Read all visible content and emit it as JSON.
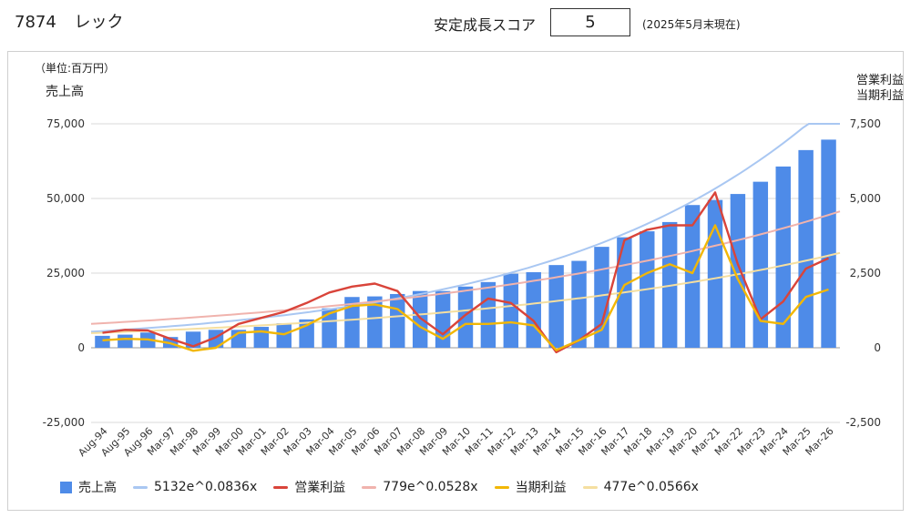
{
  "header": {
    "code": "7874",
    "name": "レック",
    "score_label": "安定成長スコア",
    "score_value": "5",
    "score_note": "(2025年5月末現在)"
  },
  "chart_data": {
    "type": "bar",
    "unit_label": "（単位:百万円）",
    "ylabel_left": "売上高",
    "ylabel_right": [
      "営業利益",
      "当期利益"
    ],
    "categories": [
      "Aug-94",
      "Aug-95",
      "Aug-96",
      "Mar-97",
      "Mar-98",
      "Mar-99",
      "Mar-00",
      "Mar-01",
      "Mar-02",
      "Mar-03",
      "Mar-04",
      "Mar-05",
      "Mar-06",
      "Mar-07",
      "Mar-08",
      "Mar-09",
      "Mar-10",
      "Mar-11",
      "Mar-12",
      "Mar-13",
      "Mar-14",
      "Mar-15",
      "Mar-16",
      "Mar-17",
      "Mar-18",
      "Mar-19",
      "Mar-20",
      "Mar-21",
      "Mar-22",
      "Mar-23",
      "Mar-24",
      "Mar-25",
      "Mar-26"
    ],
    "ylim_left": [
      -25000,
      75000
    ],
    "ylim_right": [
      -2500,
      7500
    ],
    "yticks_left": [
      "75,000",
      "50,000",
      "25,000",
      "0",
      "-25,000"
    ],
    "yticks_right": [
      "7,500",
      "5,000",
      "2,500",
      "0",
      "-2,500"
    ],
    "grid": true,
    "legend_position": "bottom",
    "series": [
      {
        "name": "売上高",
        "kind": "bar",
        "axis": "left",
        "color": "#4e8be8",
        "values": [
          4000,
          4400,
          5100,
          3600,
          5400,
          6000,
          6000,
          7000,
          8200,
          9500,
          13200,
          17000,
          17200,
          18000,
          19000,
          19000,
          20500,
          22000,
          24800,
          25300,
          27700,
          29100,
          33800,
          37000,
          39000,
          42100,
          47800,
          49500,
          51500,
          55600,
          60700,
          66200,
          69700
        ]
      },
      {
        "name": "5132e^0.0836x",
        "kind": "trend",
        "axis": "left",
        "color": "#a9c7f2",
        "a": 5132,
        "b": 0.0836
      },
      {
        "name": "営業利益",
        "kind": "line",
        "axis": "right",
        "color": "#d9443a",
        "values": [
          500,
          600,
          580,
          300,
          50,
          350,
          800,
          1000,
          1200,
          1500,
          1850,
          2050,
          2150,
          1900,
          1000,
          450,
          1100,
          1650,
          1500,
          900,
          -150,
          250,
          800,
          3600,
          3950,
          4100,
          4100,
          5200,
          2800,
          950,
          1550,
          2650,
          3000
        ]
      },
      {
        "name": "779e^0.0528x",
        "kind": "trend",
        "axis": "right",
        "color": "#f0b3ad",
        "a": 779,
        "b": 0.0528
      },
      {
        "name": "当期利益",
        "kind": "line",
        "axis": "right",
        "color": "#f2b705",
        "values": [
          250,
          300,
          280,
          150,
          -100,
          0,
          500,
          550,
          450,
          750,
          1150,
          1400,
          1450,
          1300,
          700,
          300,
          800,
          800,
          850,
          750,
          -80,
          250,
          600,
          2100,
          2500,
          2800,
          2500,
          4100,
          2300,
          900,
          800,
          1700,
          1950
        ]
      },
      {
        "name": "477e^0.0566x",
        "kind": "trend",
        "axis": "right",
        "color": "#f5dfa0",
        "a": 477,
        "b": 0.0566
      }
    ]
  }
}
